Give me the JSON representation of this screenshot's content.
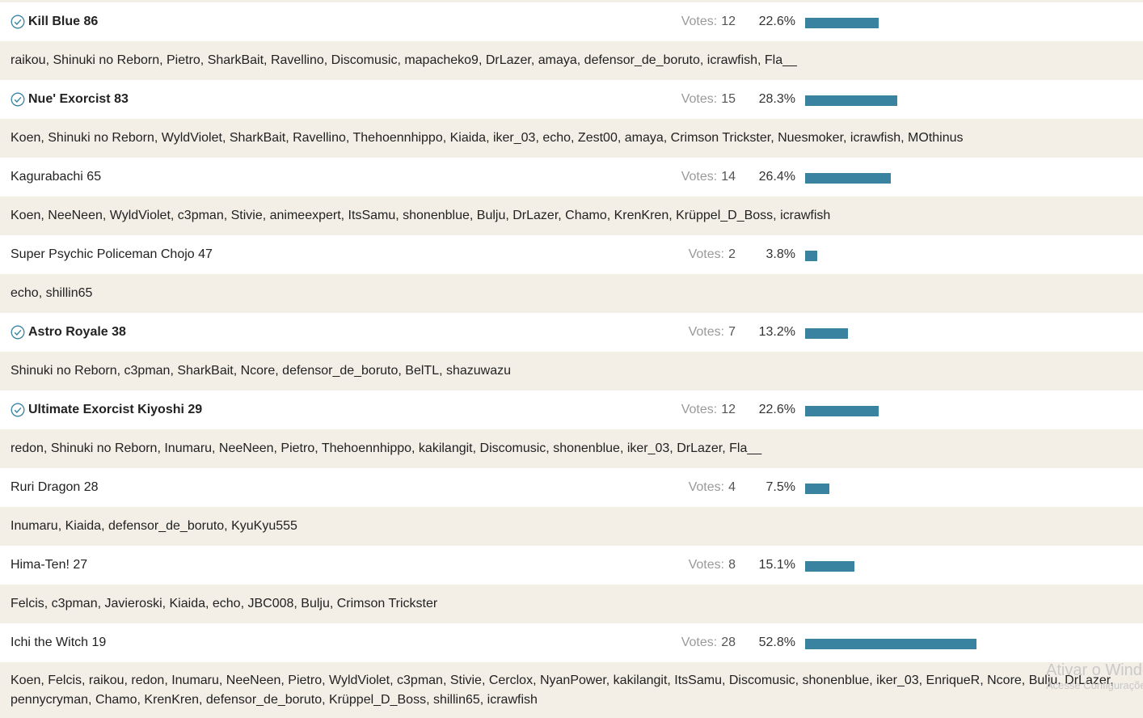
{
  "colors": {
    "bar": "#3a83a0",
    "alt_row": "#f3efe7",
    "check": "#3a83a0"
  },
  "vote_label": "Votes:",
  "options": [
    {
      "name": "Kill Blue 86",
      "checked": true,
      "votes": "12",
      "pct": "22.6%",
      "fraction": 0.226,
      "voters": "raikou, Shinuki no Reborn, Pietro, SharkBait, Ravellino, Discomusic, mapacheko9, DrLazer, amaya, defensor_de_boruto, icrawfish, Fla__"
    },
    {
      "name": "Nue' Exorcist 83",
      "checked": true,
      "votes": "15",
      "pct": "28.3%",
      "fraction": 0.283,
      "voters": "Koen, Shinuki no Reborn, WyldViolet, SharkBait, Ravellino, Thehoennhippo, Kiaida, iker_03, echo, Zest00, amaya, Crimson Trickster, Nuesmoker, icrawfish, MOthinus"
    },
    {
      "name": "Kagurabachi 65",
      "checked": false,
      "votes": "14",
      "pct": "26.4%",
      "fraction": 0.264,
      "voters": "Koen, NeeNeen, WyldViolet, c3pman, Stivie, animeexpert, ItsSamu, shonenblue, Bulju, DrLazer, Chamo, KrenKren, Krüppel_D_Boss, icrawfish"
    },
    {
      "name": "Super Psychic Policeman Chojo 47",
      "checked": false,
      "votes": "2",
      "pct": "3.8%",
      "fraction": 0.038,
      "voters": "echo, shillin65"
    },
    {
      "name": "Astro Royale 38",
      "checked": true,
      "votes": "7",
      "pct": "13.2%",
      "fraction": 0.132,
      "voters": "Shinuki no Reborn, c3pman, SharkBait, Ncore, defensor_de_boruto, BelTL, shazuwazu"
    },
    {
      "name": "Ultimate Exorcist Kiyoshi 29",
      "checked": true,
      "votes": "12",
      "pct": "22.6%",
      "fraction": 0.226,
      "voters": "redon, Shinuki no Reborn, Inumaru, NeeNeen, Pietro, Thehoennhippo, kakilangit, Discomusic, shonenblue, iker_03, DrLazer, Fla__"
    },
    {
      "name": "Ruri Dragon 28",
      "checked": false,
      "votes": "4",
      "pct": "7.5%",
      "fraction": 0.075,
      "voters": "Inumaru, Kiaida, defensor_de_boruto, KyuKyu555"
    },
    {
      "name": "Hima-Ten! 27",
      "checked": false,
      "votes": "8",
      "pct": "15.1%",
      "fraction": 0.151,
      "voters": "Felcis, c3pman, Javieroski, Kiaida, echo, JBC008, Bulju, Crimson Trickster"
    },
    {
      "name": "Ichi the Witch 19",
      "checked": false,
      "votes": "28",
      "pct": "52.8%",
      "fraction": 0.528,
      "voters": "Koen, Felcis, raikou, redon, Inumaru, NeeNeen, Pietro, WyldViolet, c3pman, Stivie, Cerclox, NyanPower, kakilangit, ItsSamu, Discomusic, shonenblue, iker_03, EnriqueR, Ncore, Bulju, DrLazer, pennycryman, Chamo, KrenKren, defensor_de_boruto, Krüppel_D_Boss, shillin65, icrawfish"
    }
  ],
  "watermark": {
    "line1": "Ativar o Windows",
    "line2": "Acesse Configurações"
  }
}
